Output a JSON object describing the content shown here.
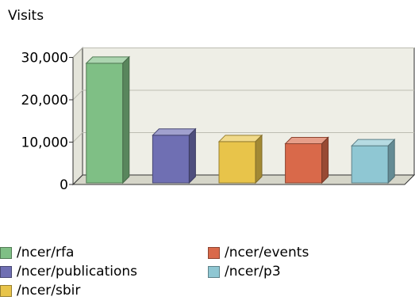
{
  "chart_data": {
    "type": "bar",
    "ylabel": "Visits",
    "categories": [
      "/ncer/rfa",
      "/ncer/publications",
      "/ncer/sbir",
      "/ncer/events",
      "/ncer/p3"
    ],
    "values": [
      29000,
      12000,
      10500,
      10000,
      9500
    ],
    "ylim": [
      0,
      30000
    ],
    "yticks": [
      0,
      10000,
      20000,
      30000
    ],
    "ytick_labels": [
      "0",
      "10,000",
      "20,000",
      "30,000"
    ],
    "colors": [
      "#7fbf85",
      "#6f6fb3",
      "#e8c44a",
      "#d9694a",
      "#8fc7d3"
    ],
    "grid": true,
    "style": "3d",
    "legend_position": "bottom"
  }
}
